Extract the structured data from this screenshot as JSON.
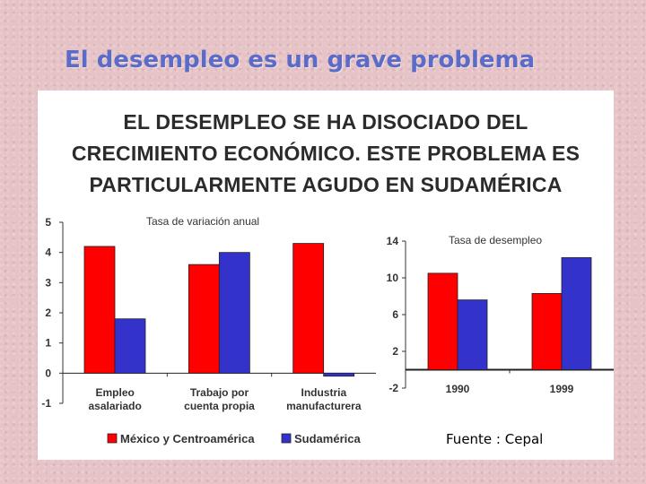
{
  "slide_title": "El desempleo es un grave problema",
  "heading_lines": [
    "EL DESEMPLEO SE HA DISOCIADO DEL",
    "CRECIMIENTO ECONÓMICO. ESTE PROBLEMA ES",
    "PARTICULARMENTE AGUDO EN SUDAMÉRICA"
  ],
  "source": "Fuente : Cepal",
  "colors": {
    "series_1": "#ff0000",
    "series_2": "#3333cc"
  },
  "chart_data": [
    {
      "type": "bar",
      "title": "Tasa de variación anual",
      "categories": [
        [
          "Empleo",
          "asalariado"
        ],
        [
          "Trabajo por",
          "cuenta propia"
        ],
        [
          "Industria",
          "manufacturera"
        ]
      ],
      "series": [
        {
          "name": "México y Centroamérica",
          "values": [
            4.2,
            3.6,
            4.3
          ]
        },
        {
          "name": "Sudamérica",
          "values": [
            1.8,
            4.0,
            -0.1
          ]
        }
      ],
      "ylim": [
        -1,
        5
      ],
      "yticks": [
        "5",
        "4",
        "3",
        "2",
        "1",
        "0",
        "-1"
      ],
      "legend": "bottom"
    },
    {
      "type": "bar",
      "title": "Tasa de desempleo",
      "categories": [
        "1990",
        "1999"
      ],
      "series": [
        {
          "name": "México y Centroamérica",
          "values": [
            10.5,
            8.3
          ]
        },
        {
          "name": "Sudamérica",
          "values": [
            7.6,
            12.2
          ]
        }
      ],
      "ylim": [
        -2,
        14
      ],
      "yticks": [
        "14",
        "10",
        "6",
        "2",
        "-2"
      ]
    }
  ]
}
